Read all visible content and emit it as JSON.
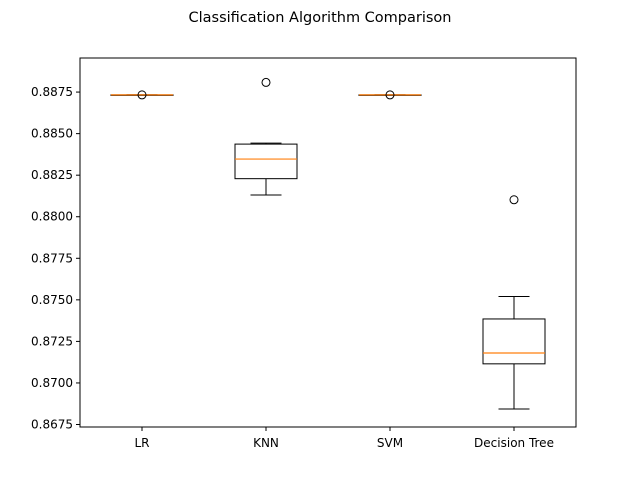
{
  "chart_data": {
    "type": "box",
    "title": "Classification Algorithm Comparison",
    "xlabel": "",
    "ylabel": "",
    "ylim": [
      0.86735,
      0.88955
    ],
    "yticks": [
      0.8675,
      0.87,
      0.8725,
      0.875,
      0.8775,
      0.88,
      0.8825,
      0.885,
      0.8875
    ],
    "ytick_labels": [
      "0.8675",
      "0.8700",
      "0.8725",
      "0.8750",
      "0.8775",
      "0.8800",
      "0.8825",
      "0.8850",
      "0.8875"
    ],
    "grid": false,
    "categories": [
      "LR",
      "KNN",
      "SVM",
      "Decision Tree"
    ],
    "boxes": [
      {
        "whisker_low": 0.88733,
        "q1": 0.88733,
        "median": 0.88733,
        "q3": 0.88733,
        "whisker_high": 0.88733,
        "outliers": [
          0.88733
        ]
      },
      {
        "whisker_low": 0.88131,
        "q1": 0.88229,
        "median": 0.88347,
        "q3": 0.88437,
        "whisker_high": 0.88443,
        "outliers": [
          0.88808
        ]
      },
      {
        "whisker_low": 0.88733,
        "q1": 0.88733,
        "median": 0.88733,
        "q3": 0.88733,
        "whisker_high": 0.88733,
        "outliers": [
          0.88733
        ]
      },
      {
        "whisker_low": 0.86843,
        "q1": 0.87115,
        "median": 0.8718,
        "q3": 0.87385,
        "whisker_high": 0.8752,
        "outliers": [
          0.88102
        ]
      }
    ],
    "colors": {
      "box": "#000000",
      "median": "#ff7f0e",
      "outlier": "#000000"
    }
  }
}
